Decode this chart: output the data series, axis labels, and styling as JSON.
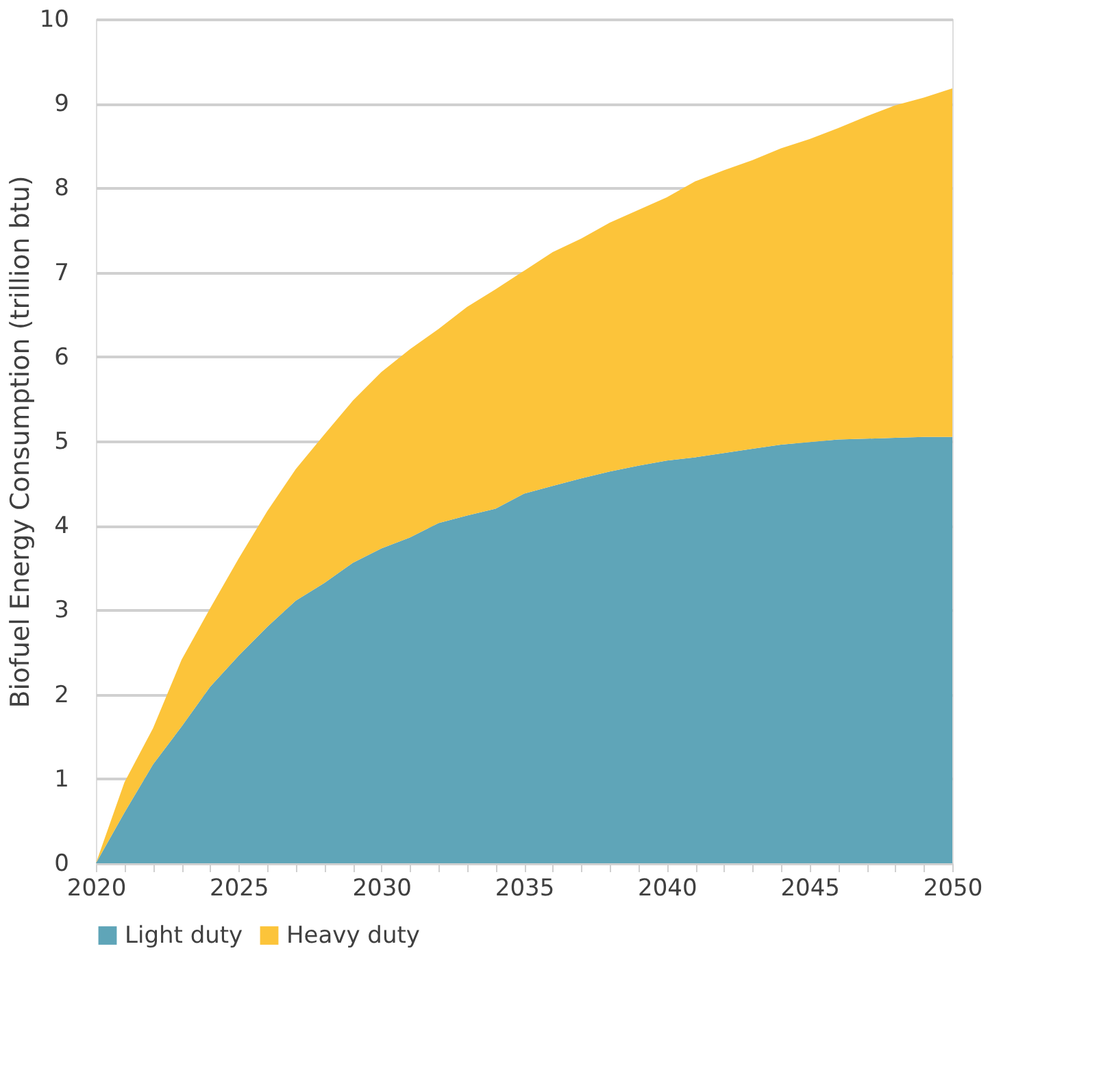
{
  "chart_data": {
    "type": "area",
    "stacked": true,
    "ylabel": "Biofuel Energy Consumption (trillion btu)",
    "x": [
      2020,
      2021,
      2022,
      2023,
      2024,
      2025,
      2026,
      2027,
      2028,
      2029,
      2030,
      2031,
      2032,
      2033,
      2034,
      2035,
      2036,
      2037,
      2038,
      2039,
      2040,
      2041,
      2042,
      2043,
      2044,
      2045,
      2046,
      2047,
      2048,
      2049,
      2050
    ],
    "series": [
      {
        "name": "Light duty",
        "color": "#5fa5b8",
        "values": [
          0,
          0.6,
          1.17,
          1.62,
          2.09,
          2.46,
          2.8,
          3.11,
          3.32,
          3.56,
          3.73,
          3.86,
          4.03,
          4.12,
          4.2,
          4.38,
          4.47,
          4.56,
          4.64,
          4.71,
          4.77,
          4.81,
          4.86,
          4.91,
          4.96,
          4.99,
          5.02,
          5.03,
          5.04,
          5.05,
          5.05
        ]
      },
      {
        "name": "Heavy duty",
        "color": "#fcc43a",
        "values": [
          0,
          0.36,
          0.43,
          0.79,
          0.93,
          1.15,
          1.37,
          1.56,
          1.76,
          1.92,
          2.09,
          2.23,
          2.3,
          2.47,
          2.6,
          2.64,
          2.77,
          2.84,
          2.95,
          3.03,
          3.12,
          3.27,
          3.35,
          3.42,
          3.51,
          3.59,
          3.69,
          3.82,
          3.94,
          4.02,
          4.13
        ]
      }
    ],
    "xlim": [
      2020,
      2050
    ],
    "xticks": [
      2020,
      {
        "value": 2021,
        "label": null
      },
      {
        "value": 2022,
        "label": null
      },
      {
        "value": 2023,
        "label": null
      },
      {
        "value": 2024,
        "label": null
      },
      2025,
      {
        "value": 2026,
        "label": null
      },
      {
        "value": 2027,
        "label": null
      },
      {
        "value": 2028,
        "label": null
      },
      {
        "value": 2029,
        "label": null
      },
      2030,
      {
        "value": 2031,
        "label": null
      },
      {
        "value": 2032,
        "label": null
      },
      {
        "value": 2033,
        "label": null
      },
      {
        "value": 2034,
        "label": null
      },
      2035,
      {
        "value": 2036,
        "label": null
      },
      {
        "value": 2037,
        "label": null
      },
      {
        "value": 2038,
        "label": null
      },
      {
        "value": 2039,
        "label": null
      },
      2040,
      {
        "value": 2041,
        "label": null
      },
      {
        "value": 2042,
        "label": null
      },
      {
        "value": 2043,
        "label": null
      },
      {
        "value": 2044,
        "label": null
      },
      2045,
      {
        "value": 2046,
        "label": null
      },
      {
        "value": 2047,
        "label": null
      },
      {
        "value": 2048,
        "label": null
      },
      {
        "value": 2049,
        "label": null
      },
      2050
    ],
    "ylim": [
      0,
      10
    ],
    "yticks": [
      0,
      1,
      2,
      3,
      4,
      5,
      6,
      7,
      8,
      9,
      10
    ],
    "grid": "y",
    "legend": "bottom"
  }
}
